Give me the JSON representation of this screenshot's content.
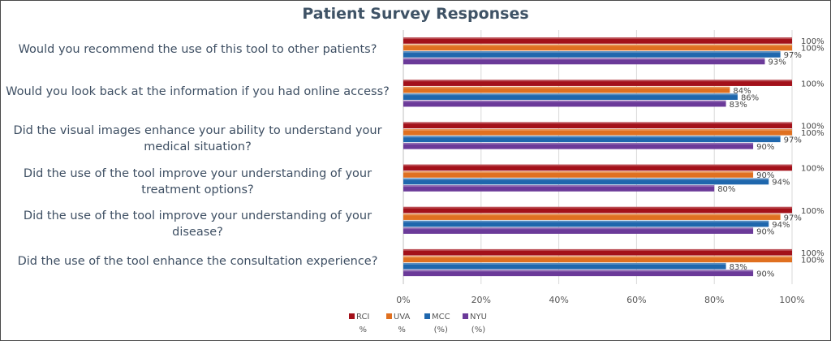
{
  "chart_data": {
    "type": "bar",
    "orientation": "horizontal",
    "title": "Patient Survey Responses",
    "xlabel": "",
    "ylabel": "",
    "xlim": [
      0,
      100
    ],
    "x_ticks": [
      "0%",
      "20%",
      "40%",
      "60%",
      "80%",
      "100%"
    ],
    "grid": true,
    "legend_position": "bottom",
    "categories": [
      "Would you recommend the use of this tool to other patients?",
      "Would you look back at the information if you had online access?",
      "Did the visual images enhance your ability to understand your medical situation?",
      "Did the use of the tool improve your understanding of your treatment options?",
      "Did the use of the tool improve your understanding of your disease?",
      "Did the use of the tool enhance the consultation experience?"
    ],
    "series": [
      {
        "name": "RCI %",
        "color": "#a3111a",
        "values": [
          100,
          100,
          100,
          100,
          100,
          100
        ]
      },
      {
        "name": "UVA %",
        "color": "#e07020",
        "values": [
          100,
          84,
          100,
          90,
          97,
          100
        ]
      },
      {
        "name": "MCC (%)",
        "color": "#1f67ad",
        "values": [
          97,
          86,
          97,
          94,
          94,
          83
        ]
      },
      {
        "name": "NYU (%)",
        "color": "#6b3a99",
        "values": [
          93,
          83,
          90,
          80,
          90,
          90
        ]
      }
    ]
  },
  "legend": [
    {
      "line1": "RCI",
      "line2": "%",
      "color": "#a3111a"
    },
    {
      "line1": "UVA",
      "line2": "%",
      "color": "#e07020"
    },
    {
      "line1": "MCC",
      "line2": "(%)",
      "color": "#1f67ad"
    },
    {
      "line1": "NYU",
      "line2": "(%)",
      "color": "#6b3a99"
    }
  ],
  "question_lines": [
    [
      "Would you recommend the use of this tool to other patients?"
    ],
    [
      "Would you look back at the information if you had online access?"
    ],
    [
      "Did the visual images enhance your ability to understand your",
      "medical situation?"
    ],
    [
      "Did the use of the tool improve your understanding of your",
      "treatment options?"
    ],
    [
      "Did the use of the tool improve your understanding of your",
      "disease?"
    ],
    [
      "Did the use of the tool enhance the consultation experience?"
    ]
  ]
}
